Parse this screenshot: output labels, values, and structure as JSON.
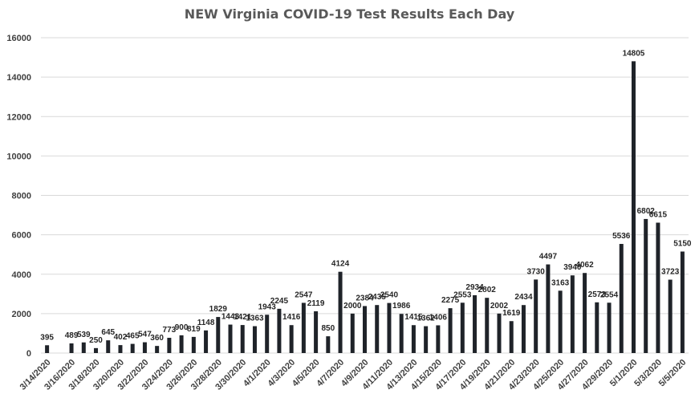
{
  "chart_data": {
    "type": "bar",
    "title": "NEW Virginia COVID-19 Test Results Each Day",
    "xlabel": "",
    "ylabel": "",
    "ylim": [
      0,
      16000
    ],
    "yticks": [
      0,
      2000,
      4000,
      6000,
      8000,
      10000,
      12000,
      14000,
      16000
    ],
    "grid": true,
    "legend": "none",
    "bar_color": "#1f2329",
    "grid_color": "#d9d9d9",
    "categories": [
      "3/14/2020",
      "3/15/2020",
      "3/16/2020",
      "3/17/2020",
      "3/18/2020",
      "3/19/2020",
      "3/20/2020",
      "3/21/2020",
      "3/22/2020",
      "3/23/2020",
      "3/24/2020",
      "3/25/2020",
      "3/26/2020",
      "3/27/2020",
      "3/28/2020",
      "3/29/2020",
      "3/30/2020",
      "3/31/2020",
      "4/1/2020",
      "4/2/2020",
      "4/3/2020",
      "4/4/2020",
      "4/5/2020",
      "4/6/2020",
      "4/7/2020",
      "4/8/2020",
      "4/9/2020",
      "4/10/2020",
      "4/11/2020",
      "4/12/2020",
      "4/13/2020",
      "4/14/2020",
      "4/15/2020",
      "4/16/2020",
      "4/17/2020",
      "4/18/2020",
      "4/19/2020",
      "4/20/2020",
      "4/21/2020",
      "4/22/2020",
      "4/23/2020",
      "4/24/2020",
      "4/25/2020",
      "4/26/2020",
      "4/27/2020",
      "4/28/2020",
      "4/29/2020",
      "4/30/2020",
      "5/1/2020",
      "5/2/2020",
      "5/3/2020",
      "5/4/2020",
      "5/5/2020"
    ],
    "values": [
      395,
      0,
      489,
      539,
      250,
      645,
      402,
      465,
      547,
      360,
      773,
      900,
      819,
      1148,
      1829,
      1443,
      1421,
      1363,
      1943,
      2245,
      1416,
      2547,
      2119,
      850,
      4124,
      2000,
      2384,
      2435,
      2540,
      1986,
      1415,
      1362,
      1406,
      2275,
      2553,
      2934,
      2802,
      2002,
      1619,
      2434,
      3730,
      4497,
      3163,
      3940,
      4062,
      2573,
      2554,
      5536,
      14805,
      6802,
      6615,
      3723,
      5150
    ],
    "data_labels": [
      "395",
      "",
      "489",
      "539",
      "250",
      "645",
      "402",
      "465",
      "547",
      "360",
      "773",
      "900",
      "819",
      "1148",
      "1829",
      "1443",
      "1421",
      "1363",
      "1943",
      "2245",
      "1416",
      "2547",
      "2119",
      "850",
      "4124",
      "2000",
      "2384",
      "2435",
      "2540",
      "1986",
      "1415",
      "1362",
      "1406",
      "2275",
      "2553",
      "2934",
      "2802",
      "2002",
      "1619",
      "2434",
      "3730",
      "4497",
      "3163",
      "3940",
      "4062",
      "2573",
      "2554",
      "5536",
      "14805",
      "6802",
      "6615",
      "3723",
      "5150"
    ],
    "xtick_labels": [
      "3/14/2020",
      "3/16/2020",
      "3/18/2020",
      "3/20/2020",
      "3/22/2020",
      "3/24/2020",
      "3/26/2020",
      "3/28/2020",
      "3/30/2020",
      "4/1/2020",
      "4/3/2020",
      "4/5/2020",
      "4/7/2020",
      "4/9/2020",
      "4/11/2020",
      "4/13/2020",
      "4/15/2020",
      "4/17/2020",
      "4/19/2020",
      "4/21/2020",
      "4/23/2020",
      "4/25/2020",
      "4/27/2020",
      "4/29/2020",
      "5/1/2020",
      "5/3/2020",
      "5/5/2020"
    ]
  }
}
